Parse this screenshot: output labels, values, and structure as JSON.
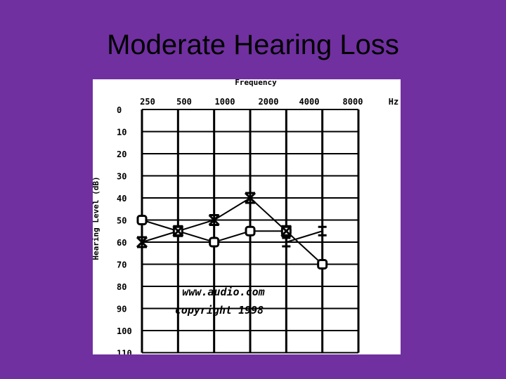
{
  "slide": {
    "title": "Moderate Hearing Loss"
  },
  "chart_data": {
    "type": "line",
    "title": "Frequency",
    "x_unit": "Hz",
    "ylabel": "Hearing Level (dB)",
    "categories": [
      "250",
      "500",
      "1000",
      "2000",
      "4000",
      "8000"
    ],
    "y_ticks": [
      0,
      10,
      20,
      30,
      40,
      50,
      60,
      70,
      80,
      90,
      100,
      110
    ],
    "ylim": [
      0,
      110
    ],
    "y_inverted": true,
    "grid": true,
    "watermark": [
      "www.audio.com",
      "copyright 1998"
    ],
    "series": [
      {
        "marker": "O",
        "values": [
          50,
          55,
          60,
          55,
          55,
          70
        ]
      },
      {
        "marker": "X",
        "values": [
          60,
          55,
          50,
          40,
          55,
          null
        ]
      },
      {
        "marker": "Z",
        "values": [
          null,
          null,
          null,
          null,
          60,
          55
        ]
      }
    ]
  }
}
